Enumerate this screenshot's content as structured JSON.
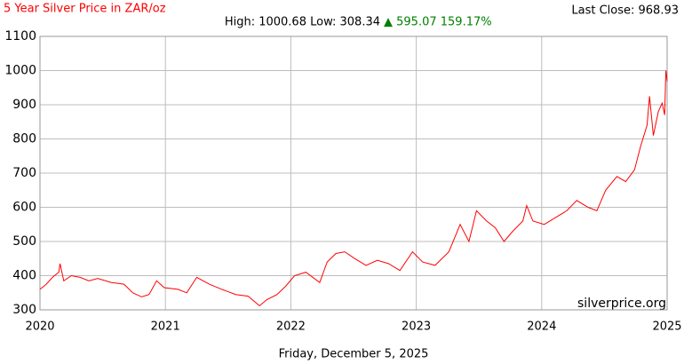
{
  "chart_data": {
    "type": "line",
    "title": "5 Year Silver Price in ZAR/oz",
    "last_close": "Last Close: 968.93",
    "stats_high_low": "High: 1000.68 Low: 308.34",
    "stats_change": "▲ 595.07 159.17%",
    "watermark": "silverprice.org",
    "footer": "Friday, December 5, 2025",
    "x": [
      2020.0,
      2020.05,
      2020.1,
      2020.15,
      2020.16,
      2020.19,
      2020.25,
      2020.32,
      2020.39,
      2020.46,
      2020.57,
      2020.67,
      2020.74,
      2020.81,
      2020.87,
      2020.93,
      2020.99,
      2021.1,
      2021.17,
      2021.25,
      2021.35,
      2021.45,
      2021.56,
      2021.66,
      2021.75,
      2021.81,
      2021.89,
      2021.96,
      2022.03,
      2022.12,
      2022.23,
      2022.29,
      2022.36,
      2022.43,
      2022.51,
      2022.6,
      2022.69,
      2022.78,
      2022.87,
      2022.97,
      2023.05,
      2023.15,
      2023.26,
      2023.35,
      2023.42,
      2023.48,
      2023.56,
      2023.63,
      2023.7,
      2023.77,
      2023.85,
      2023.88,
      2023.93,
      2024.02,
      2024.11,
      2024.2,
      2024.28,
      2024.37,
      2024.44,
      2024.51,
      2024.6,
      2024.67,
      2024.74,
      2024.79,
      2024.84,
      2024.86,
      2024.89,
      2024.93,
      2024.96,
      2024.98,
      2024.99,
      2025.0
    ],
    "series": [
      {
        "name": "Silver ZAR/oz",
        "color": "#ff0000",
        "values": [
          360,
          375,
          395,
          410,
          435,
          385,
          400,
          395,
          385,
          392,
          380,
          375,
          350,
          338,
          345,
          385,
          365,
          360,
          350,
          395,
          375,
          360,
          345,
          340,
          312,
          330,
          345,
          370,
          400,
          410,
          380,
          440,
          465,
          470,
          450,
          430,
          445,
          435,
          415,
          470,
          440,
          430,
          470,
          550,
          500,
          590,
          560,
          540,
          500,
          530,
          560,
          605,
          560,
          550,
          570,
          590,
          620,
          600,
          590,
          650,
          690,
          675,
          710,
          780,
          840,
          925,
          810,
          880,
          905,
          870,
          1000,
          968.93
        ]
      }
    ],
    "xlim": [
      2020,
      2025
    ],
    "xticks": [
      2020,
      2021,
      2022,
      2023,
      2024,
      2025
    ],
    "ylim": [
      300,
      1100
    ],
    "yticks": [
      300,
      400,
      500,
      600,
      700,
      800,
      900,
      1000,
      1100
    ],
    "grid": true
  }
}
